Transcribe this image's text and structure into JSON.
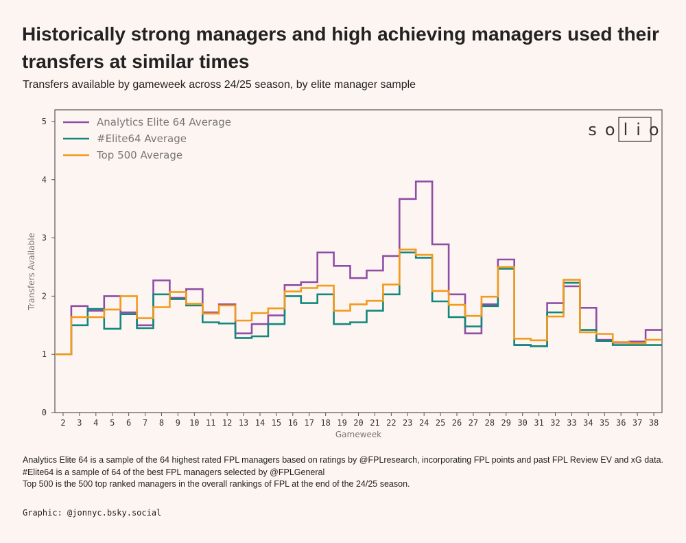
{
  "header": {
    "title": "Historically strong managers and high achieving managers used their transfers at similar times",
    "subtitle": "Transfers available by gameweek across 24/25 season, by elite manager sample"
  },
  "logo": {
    "text": "solio"
  },
  "footer": {
    "notes": [
      "Analytics Elite 64 is a sample of the 64 highest rated FPL managers based on ratings by @FPLresearch, incorporating FPL points and past FPL Review EV and xG data.",
      "#Elite64 is a sample of 64 of the best FPL managers selected by @FPLGeneral",
      "Top 500 is the 500 top ranked managers in the overall rankings of FPL at the end of the 24/25 season."
    ],
    "credit": "Graphic: @jonnyc.bsky.social"
  },
  "colors": {
    "background": "#fdf5f1",
    "analytics": "#8e4ea6",
    "elite64": "#12877b",
    "top500": "#f29a1c"
  },
  "chart_data": {
    "type": "line",
    "step": "mid",
    "xlabel": "Gameweek",
    "ylabel": "Transfers Available",
    "xlim": [
      1.5,
      38.5
    ],
    "ylim": [
      0,
      5.2
    ],
    "x_ticks": [
      2,
      3,
      4,
      5,
      6,
      7,
      8,
      9,
      10,
      11,
      12,
      13,
      14,
      15,
      16,
      17,
      18,
      19,
      20,
      21,
      22,
      23,
      24,
      25,
      26,
      27,
      28,
      29,
      30,
      31,
      32,
      33,
      34,
      35,
      36,
      37,
      38
    ],
    "y_ticks": [
      0,
      1,
      2,
      3,
      4,
      5
    ],
    "legend_position": "top-left",
    "x": [
      2,
      3,
      4,
      5,
      6,
      7,
      8,
      9,
      10,
      11,
      12,
      13,
      14,
      15,
      16,
      17,
      18,
      19,
      20,
      21,
      22,
      23,
      24,
      25,
      26,
      27,
      28,
      29,
      30,
      31,
      32,
      33,
      34,
      35,
      36,
      37,
      38
    ],
    "series": [
      {
        "name": "Analytics Elite 64 Average",
        "color": "#8e4ea6",
        "values": [
          1.0,
          1.83,
          1.75,
          2.0,
          1.72,
          1.5,
          2.27,
          1.97,
          2.12,
          1.72,
          1.86,
          1.36,
          1.52,
          1.67,
          2.19,
          2.24,
          2.75,
          2.52,
          2.31,
          2.44,
          2.69,
          3.67,
          3.97,
          2.89,
          2.03,
          1.36,
          1.86,
          2.63,
          1.16,
          1.14,
          1.88,
          2.17,
          1.8,
          1.25,
          1.2,
          1.22,
          1.42
        ]
      },
      {
        "name": "#Elite64 Average",
        "color": "#12877b",
        "values": [
          1.0,
          1.5,
          1.78,
          1.44,
          1.69,
          1.45,
          2.03,
          1.95,
          1.84,
          1.55,
          1.53,
          1.28,
          1.31,
          1.52,
          2.0,
          1.88,
          2.03,
          1.52,
          1.55,
          1.75,
          2.03,
          2.75,
          2.66,
          1.91,
          1.64,
          1.48,
          1.83,
          2.47,
          1.16,
          1.14,
          1.72,
          2.23,
          1.42,
          1.23,
          1.16,
          1.16,
          1.16
        ]
      },
      {
        "name": "Top 500 Average",
        "color": "#f29a1c",
        "values": [
          1.0,
          1.64,
          1.64,
          1.77,
          2.0,
          1.62,
          1.81,
          2.07,
          1.87,
          1.7,
          1.84,
          1.58,
          1.71,
          1.79,
          2.08,
          2.14,
          2.18,
          1.75,
          1.86,
          1.92,
          2.2,
          2.8,
          2.71,
          2.09,
          1.85,
          1.66,
          1.99,
          2.5,
          1.27,
          1.24,
          1.65,
          2.28,
          1.38,
          1.35,
          1.21,
          1.19,
          1.25
        ]
      }
    ]
  }
}
